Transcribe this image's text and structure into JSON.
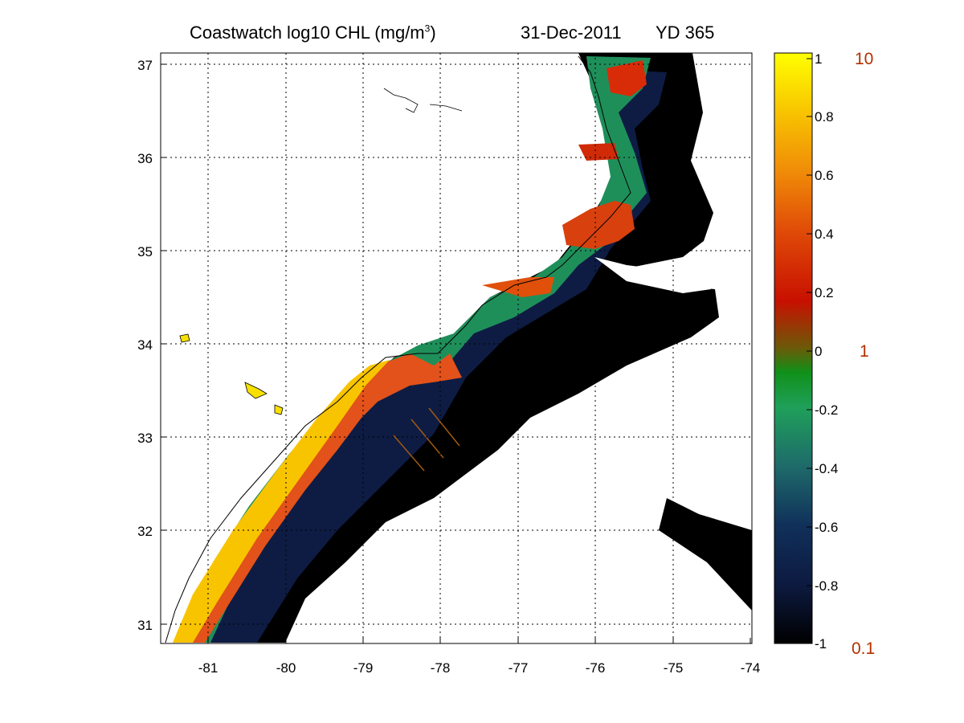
{
  "title": {
    "product": "Coastwatch  log10  CHL (mg/m",
    "unit_sup": "3",
    "unit_close": ")",
    "date": "31-Dec-2011",
    "yearday": "YD 365"
  },
  "map": {
    "lon_range": [
      -81.6,
      -74
    ],
    "lat_range": [
      30.8,
      37.2
    ],
    "x_ticks": [
      "-81",
      "-80",
      "-79",
      "-78",
      "-77",
      "-76",
      "-75",
      "-74"
    ],
    "y_ticks": [
      "37",
      "36",
      "35",
      "34",
      "33",
      "32",
      "31"
    ],
    "grid": "dotted",
    "land_color": "#ffffff",
    "coastline_color": "#000000"
  },
  "colorbar": {
    "ticks": [
      "1",
      "0.8",
      "0.6",
      "0.4",
      "0.2",
      "0",
      "-0.2",
      "-0.4",
      "-0.6",
      "-0.8",
      "-1"
    ],
    "range": [
      -1,
      1
    ],
    "linear_labels": [
      "10",
      "1",
      "0.1"
    ],
    "linear_label_color": "#b33000",
    "colormap": [
      "#000000",
      "#0d1a40",
      "#10305a",
      "#1e6a6a",
      "#1fa05a",
      "#109018",
      "#6b5a08",
      "#c81000",
      "#e04c08",
      "#f08c08",
      "#f8c400",
      "#ffff00"
    ]
  }
}
